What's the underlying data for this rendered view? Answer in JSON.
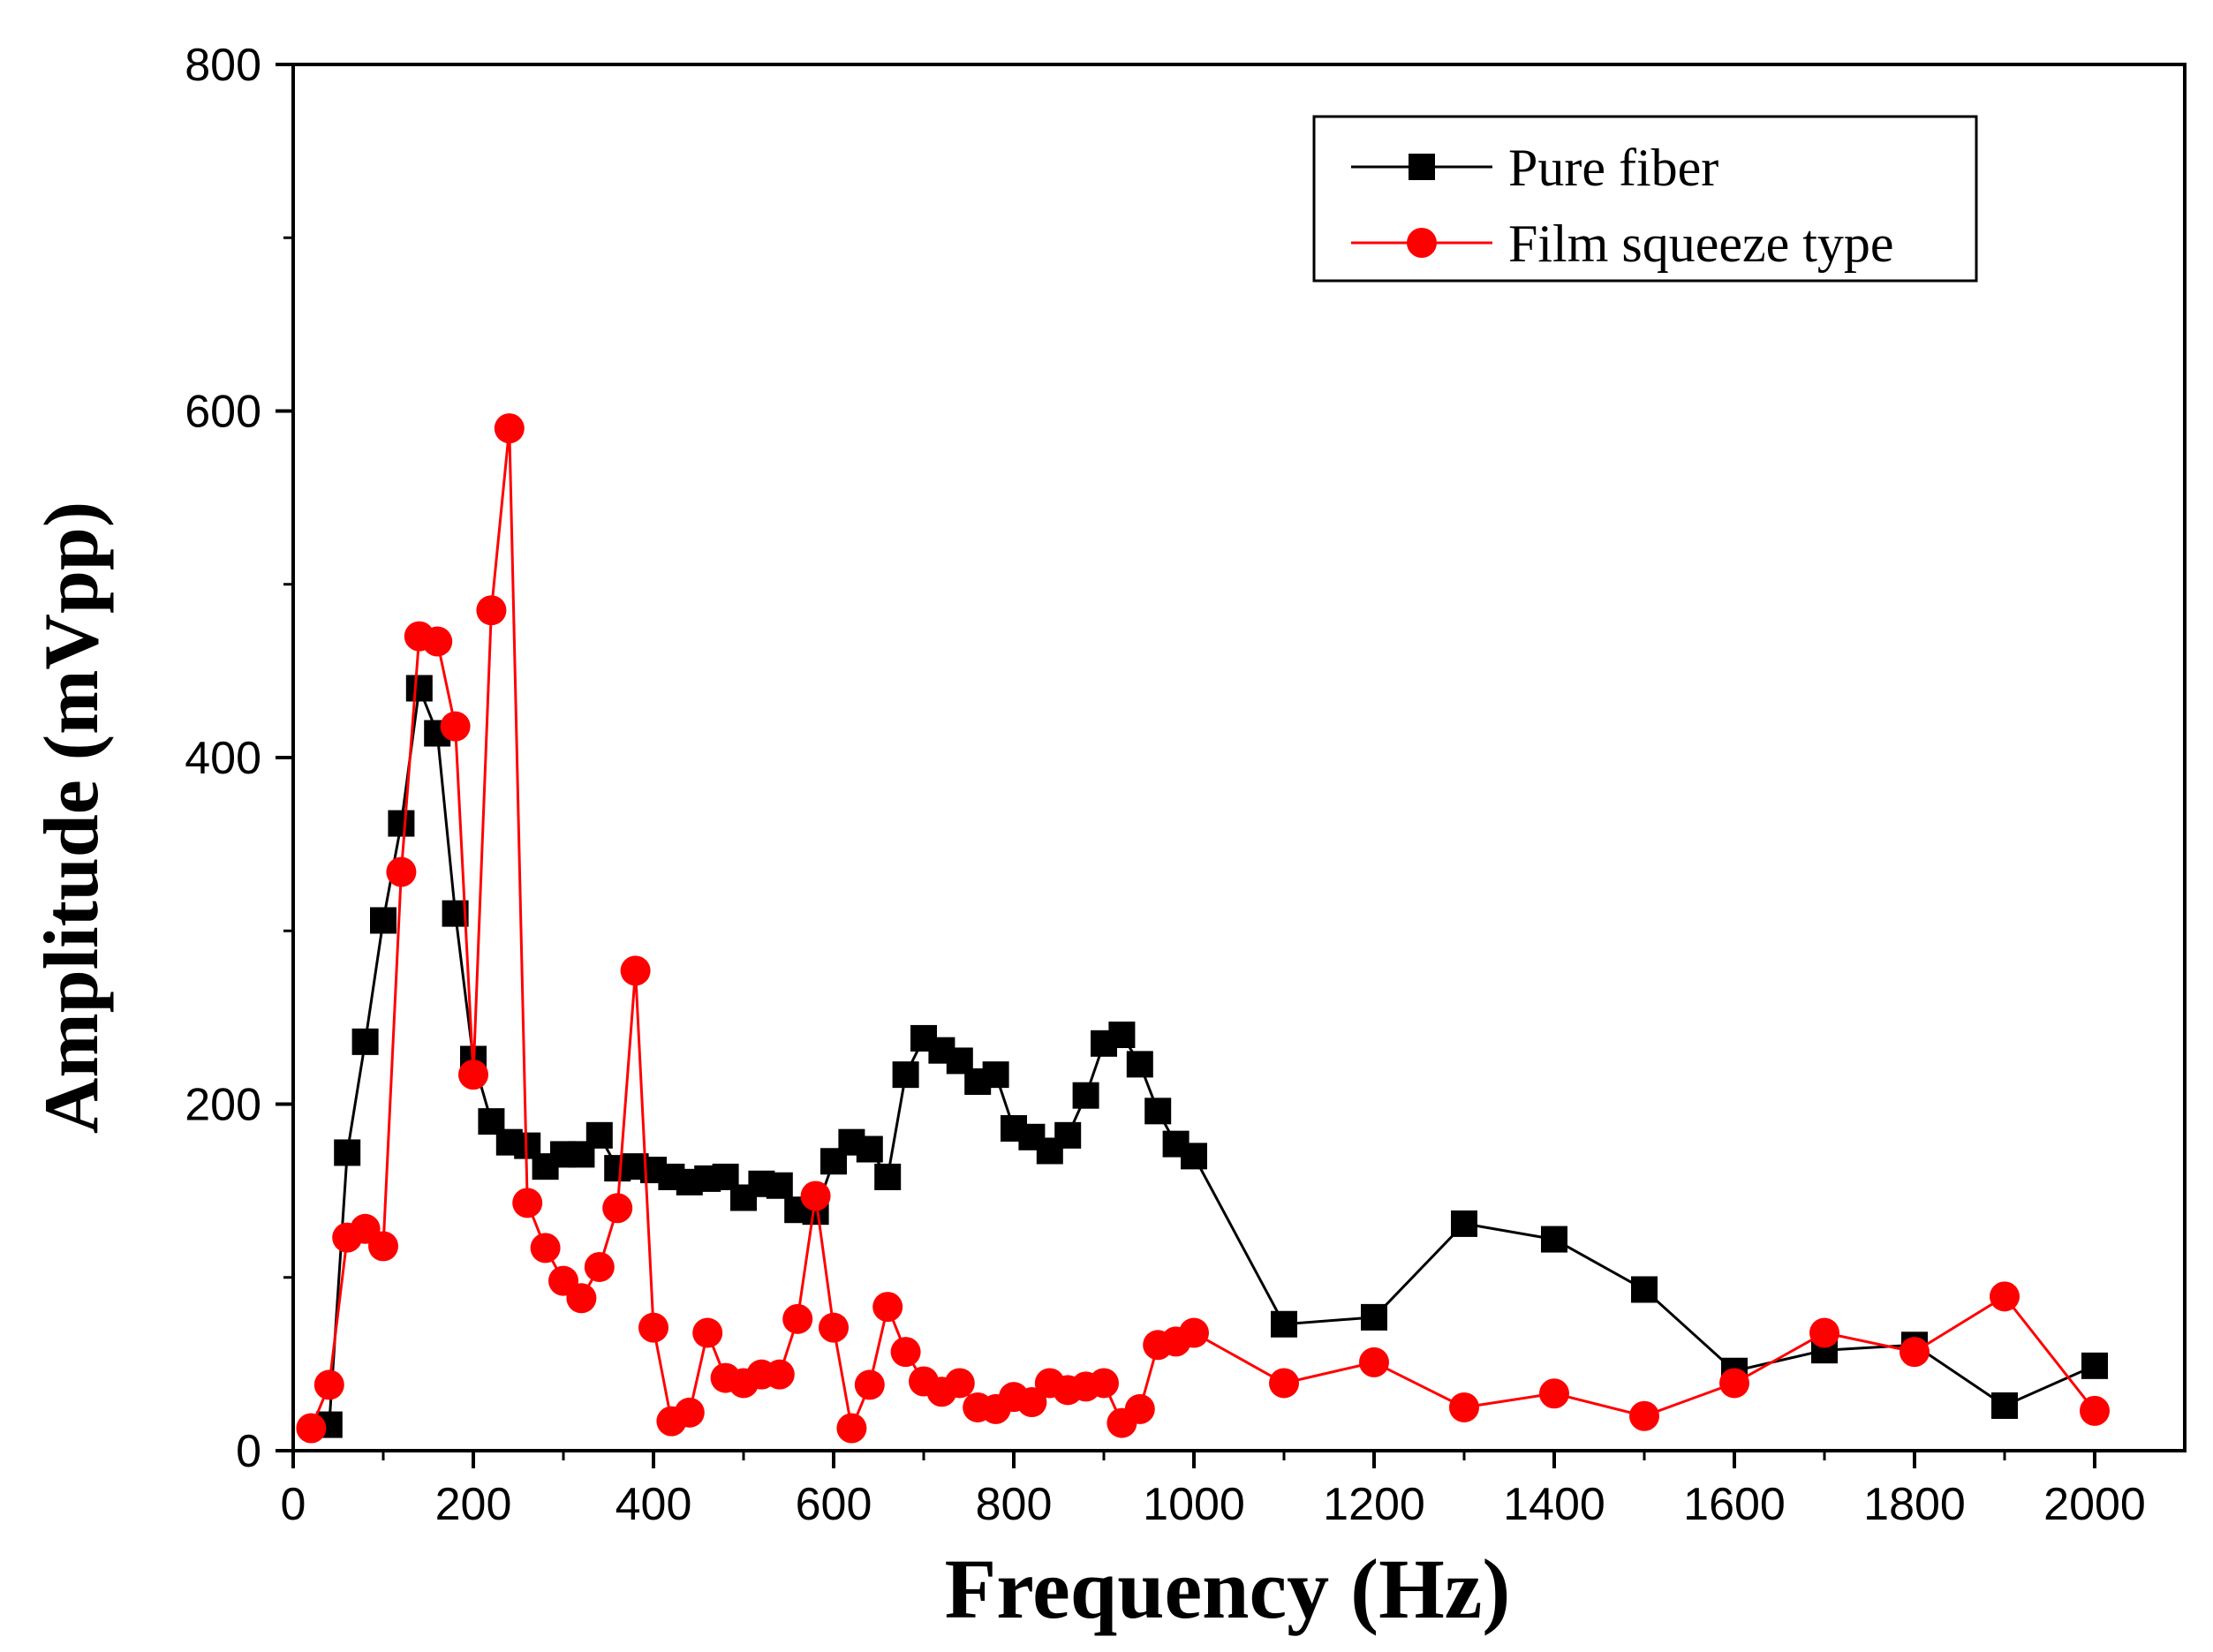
{
  "chart_data": {
    "type": "line",
    "title": "",
    "xlabel": "Frequency (Hz)",
    "ylabel": "Amplitude (mVpp)",
    "xlim": [
      0,
      2100
    ],
    "ylim": [
      0,
      800
    ],
    "xticks": [
      0,
      200,
      400,
      600,
      800,
      1000,
      1200,
      1400,
      1600,
      1800,
      2000
    ],
    "yticks": [
      0,
      200,
      400,
      600,
      800
    ],
    "xtick_labels": [
      "0",
      "200",
      "400",
      "600",
      "800",
      "1000",
      "1200",
      "1400",
      "1600",
      "1800",
      "2000"
    ],
    "ytick_labels": [
      "0",
      "200",
      "400",
      "600",
      "800"
    ],
    "grid": false,
    "legend_position": "top-right",
    "series": [
      {
        "name": "Pure fiber",
        "color": "#000000",
        "marker": "square",
        "points": [
          [
            40,
            15
          ],
          [
            60,
            172
          ],
          [
            80,
            236
          ],
          [
            100,
            306
          ],
          [
            120,
            362
          ],
          [
            140,
            440
          ],
          [
            160,
            414
          ],
          [
            180,
            310
          ],
          [
            200,
            226
          ],
          [
            220,
            190
          ],
          [
            240,
            178
          ],
          [
            260,
            176
          ],
          [
            280,
            164
          ],
          [
            300,
            171
          ],
          [
            320,
            171
          ],
          [
            340,
            182
          ],
          [
            360,
            163
          ],
          [
            380,
            164
          ],
          [
            400,
            162
          ],
          [
            420,
            158
          ],
          [
            440,
            155
          ],
          [
            460,
            157
          ],
          [
            480,
            158
          ],
          [
            500,
            146
          ],
          [
            520,
            154
          ],
          [
            540,
            153
          ],
          [
            560,
            139
          ],
          [
            580,
            138
          ],
          [
            600,
            167
          ],
          [
            620,
            178
          ],
          [
            640,
            174
          ],
          [
            660,
            158
          ],
          [
            680,
            217
          ],
          [
            700,
            238
          ],
          [
            720,
            231
          ],
          [
            740,
            225
          ],
          [
            760,
            213
          ],
          [
            780,
            217
          ],
          [
            800,
            186
          ],
          [
            820,
            181
          ],
          [
            840,
            173
          ],
          [
            860,
            182
          ],
          [
            880,
            205
          ],
          [
            900,
            235
          ],
          [
            920,
            240
          ],
          [
            940,
            223
          ],
          [
            960,
            196
          ],
          [
            980,
            177
          ],
          [
            1000,
            170
          ],
          [
            1100,
            73
          ],
          [
            1200,
            77
          ],
          [
            1300,
            131
          ],
          [
            1400,
            122
          ],
          [
            1500,
            93
          ],
          [
            1600,
            46
          ],
          [
            1700,
            58
          ],
          [
            1800,
            61
          ],
          [
            1900,
            26
          ],
          [
            2000,
            49
          ]
        ]
      },
      {
        "name": "Film squeeze type",
        "color": "#ff0000",
        "marker": "circle",
        "points": [
          [
            20,
            13
          ],
          [
            40,
            38
          ],
          [
            60,
            123
          ],
          [
            80,
            128
          ],
          [
            100,
            118
          ],
          [
            120,
            334
          ],
          [
            140,
            470
          ],
          [
            160,
            467
          ],
          [
            180,
            418
          ],
          [
            200,
            217
          ],
          [
            220,
            485
          ],
          [
            240,
            590
          ],
          [
            260,
            143
          ],
          [
            280,
            117
          ],
          [
            300,
            98
          ],
          [
            320,
            88
          ],
          [
            340,
            106
          ],
          [
            360,
            140
          ],
          [
            380,
            277
          ],
          [
            400,
            71
          ],
          [
            420,
            17
          ],
          [
            440,
            22
          ],
          [
            460,
            68
          ],
          [
            480,
            42
          ],
          [
            500,
            39
          ],
          [
            520,
            44
          ],
          [
            540,
            44
          ],
          [
            560,
            76
          ],
          [
            580,
            147
          ],
          [
            600,
            71
          ],
          [
            620,
            13
          ],
          [
            640,
            38
          ],
          [
            660,
            83
          ],
          [
            680,
            57
          ],
          [
            700,
            40
          ],
          [
            720,
            34
          ],
          [
            740,
            39
          ],
          [
            760,
            25
          ],
          [
            780,
            24
          ],
          [
            800,
            31
          ],
          [
            820,
            28
          ],
          [
            840,
            39
          ],
          [
            860,
            35
          ],
          [
            880,
            37
          ],
          [
            900,
            39
          ],
          [
            920,
            16
          ],
          [
            940,
            24
          ],
          [
            960,
            61
          ],
          [
            980,
            63
          ],
          [
            1000,
            68
          ],
          [
            1100,
            39
          ],
          [
            1200,
            51
          ],
          [
            1300,
            25
          ],
          [
            1400,
            33
          ],
          [
            1500,
            20
          ],
          [
            1600,
            39
          ],
          [
            1700,
            68
          ],
          [
            1800,
            57
          ],
          [
            1900,
            89
          ],
          [
            2000,
            23
          ]
        ]
      }
    ]
  }
}
